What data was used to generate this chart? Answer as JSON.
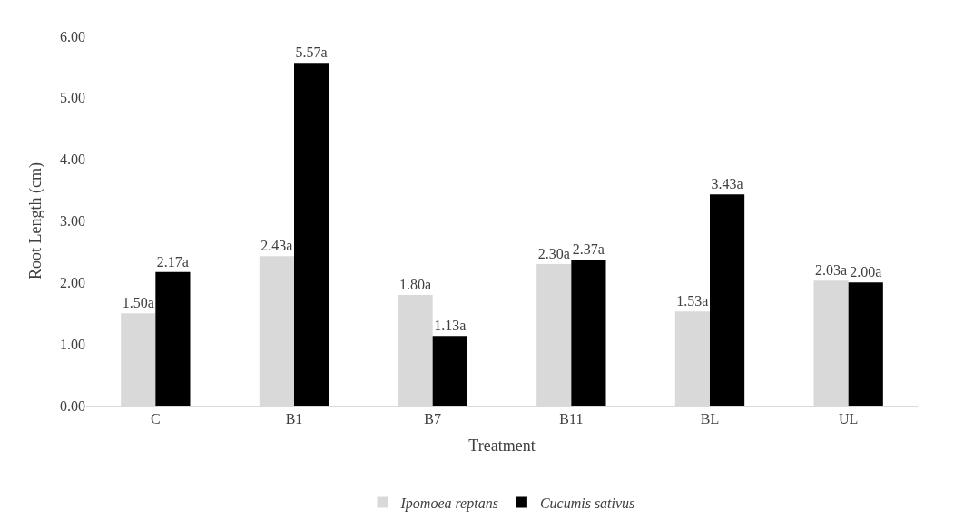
{
  "chart_data": {
    "type": "bar",
    "xlabel": "Treatment",
    "ylabel": "Root Length (cm)",
    "categories": [
      "C",
      "B1",
      "B7",
      "B11",
      "BL",
      "UL"
    ],
    "series": [
      {
        "name": "Ipomoea reptans",
        "color": "#d9d9d9",
        "values": [
          1.5,
          2.43,
          1.8,
          2.3,
          1.53,
          2.03
        ],
        "value_labels": [
          "1.50a",
          "2.43a",
          "1.80a",
          "2.30a",
          "1.53a",
          "2.03a"
        ]
      },
      {
        "name": "Cucumis sativus",
        "color": "#000000",
        "values": [
          2.17,
          5.57,
          1.13,
          2.37,
          3.43,
          2.0
        ],
        "value_labels": [
          "2.17a",
          "5.57a",
          "1.13a",
          "2.37a",
          "3.43a",
          "2.00a"
        ]
      }
    ],
    "ylim": [
      0,
      6
    ],
    "yticks": [
      {
        "value": 0,
        "label": "0.00"
      },
      {
        "value": 1,
        "label": "1.00"
      },
      {
        "value": 2,
        "label": "2.00"
      },
      {
        "value": 3,
        "label": "3.00"
      },
      {
        "value": 4,
        "label": "4.00"
      },
      {
        "value": 5,
        "label": "5.00"
      },
      {
        "value": 6,
        "label": "6.00"
      }
    ],
    "grid": false,
    "legend": "bottom"
  }
}
